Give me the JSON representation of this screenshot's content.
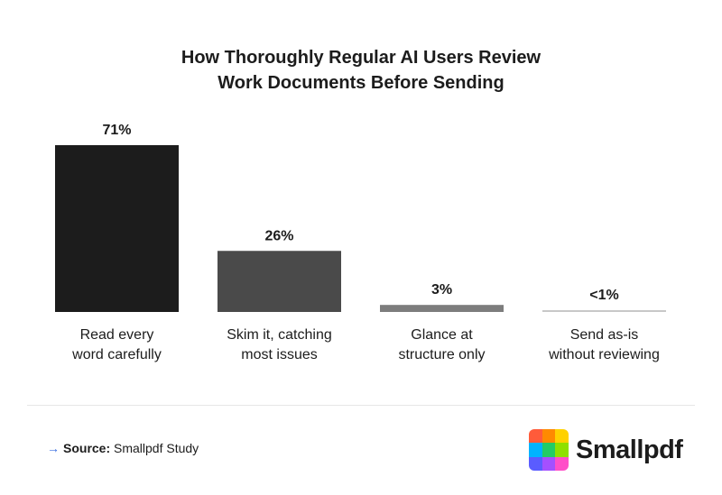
{
  "chart_data": {
    "type": "bar",
    "title_lines": [
      "How Thoroughly Regular AI Users Review",
      "Work Documents Before Sending"
    ],
    "categories": [
      [
        "Read every",
        "word carefully"
      ],
      [
        "Skim it, catching",
        "most issues"
      ],
      [
        "Glance at",
        "structure only"
      ],
      [
        "Send as-is",
        "without reviewing"
      ]
    ],
    "values": [
      71,
      26,
      3,
      0.5
    ],
    "value_labels": [
      "71%",
      "26%",
      "3%",
      "<1%"
    ],
    "bar_colors": [
      "#1c1c1c",
      "#4a4a4a",
      "#7d7d7d",
      "#c8c8c8"
    ],
    "ylim": [
      0,
      71
    ],
    "grid": false,
    "legend": "none"
  },
  "footer": {
    "source_label": "Source:",
    "source_text": "Smallpdf Study"
  },
  "logo": {
    "name": "Smallpdf",
    "colors": [
      "#ff5b3a",
      "#ff8a00",
      "#ffd100",
      "#00b3ff",
      "#22cc66",
      "#8fe000",
      "#5a5cff",
      "#a450ff",
      "#ff4fc8"
    ]
  }
}
